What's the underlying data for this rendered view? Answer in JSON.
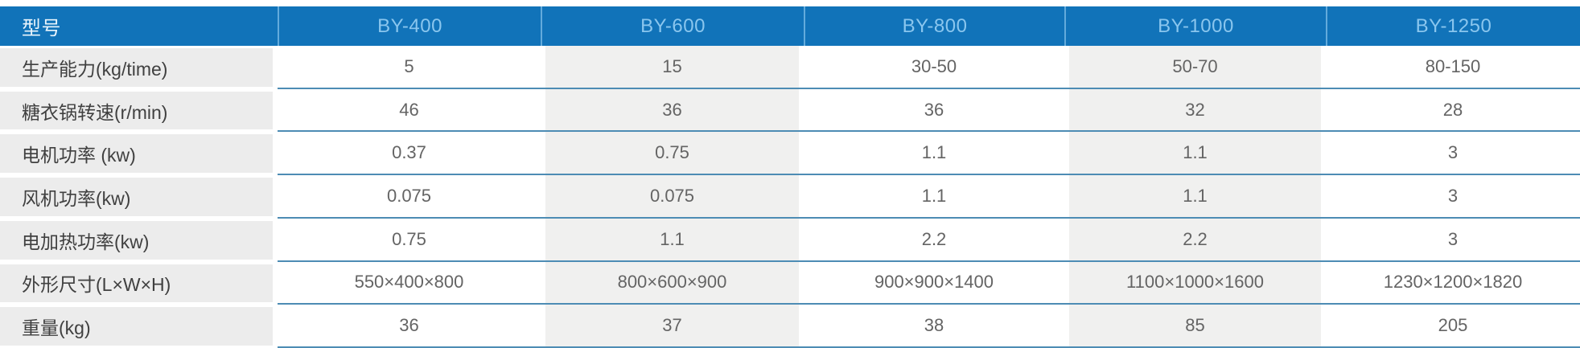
{
  "table": {
    "corner_label": "型号",
    "columns": [
      "BY-400",
      "BY-600",
      "BY-800",
      "BY-1000",
      "BY-1250"
    ],
    "rows": [
      {
        "label": "生产能力(kg/time)",
        "values": [
          "5",
          "15",
          "30-50",
          "50-70",
          "80-150"
        ]
      },
      {
        "label": "糖衣锅转速(r/min)",
        "values": [
          "46",
          "36",
          "36",
          "32",
          "28"
        ]
      },
      {
        "label": "电机功率 (kw)",
        "values": [
          "0.37",
          "0.75",
          "1.1",
          "1.1",
          "3"
        ]
      },
      {
        "label": "风机功率(kw)",
        "values": [
          "0.075",
          "0.075",
          "1.1",
          "1.1",
          "3"
        ]
      },
      {
        "label": "电加热功率(kw)",
        "values": [
          "0.75",
          "1.1",
          "2.2",
          "2.2",
          "3"
        ]
      },
      {
        "label": "外形尺寸(L×W×H)",
        "values": [
          "550×400×800",
          "800×600×900",
          "900×900×1400",
          "1100×1000×1600",
          "1230×1200×1820"
        ]
      },
      {
        "label": "重量(kg)",
        "values": [
          "36",
          "37",
          "38",
          "85",
          "205"
        ]
      }
    ],
    "colors": {
      "header_bg": "#1173b9",
      "header_divider": "#63abdc",
      "header_corner_text": "#e9f4fc",
      "header_col_text": "#8ac6ee",
      "row_line": "#4d8cb4",
      "label_cell_bg": "#ececec",
      "alt_col_bg": "#f0f0ef",
      "value_text": "#646464",
      "label_text": "#404040"
    }
  }
}
